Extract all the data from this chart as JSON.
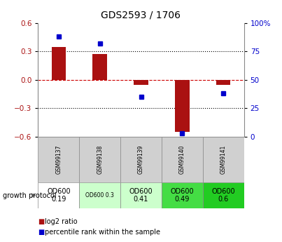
{
  "title": "GDS2593 / 1706",
  "samples": [
    "GSM99137",
    "GSM99138",
    "GSM99139",
    "GSM99140",
    "GSM99141"
  ],
  "log2_ratio": [
    0.35,
    0.27,
    -0.05,
    -0.55,
    -0.05
  ],
  "percentile": [
    88,
    82,
    35,
    3,
    38
  ],
  "ylim_left": [
    -0.6,
    0.6
  ],
  "ylim_right": [
    0,
    100
  ],
  "yticks_left": [
    -0.6,
    -0.3,
    0.0,
    0.3,
    0.6
  ],
  "yticks_right": [
    0,
    25,
    50,
    75,
    100
  ],
  "bar_color": "#aa1111",
  "dot_color": "#0000cc",
  "hline_color": "#cc0000",
  "dotted_color": "#000000",
  "bg_color": "#ffffff",
  "protocol_labels": [
    "OD600\n0.19",
    "OD600 0.3",
    "OD600\n0.41",
    "OD600\n0.49",
    "OD600\n0.6"
  ],
  "protocol_colors": [
    "#ffffff",
    "#ccffcc",
    "#ccffcc",
    "#44dd44",
    "#22cc22"
  ],
  "protocol_fontsize": [
    7,
    5.5,
    7,
    7,
    7
  ],
  "legend_log2": "log2 ratio",
  "legend_pct": "percentile rank within the sample",
  "growth_protocol_label": "growth protocol"
}
